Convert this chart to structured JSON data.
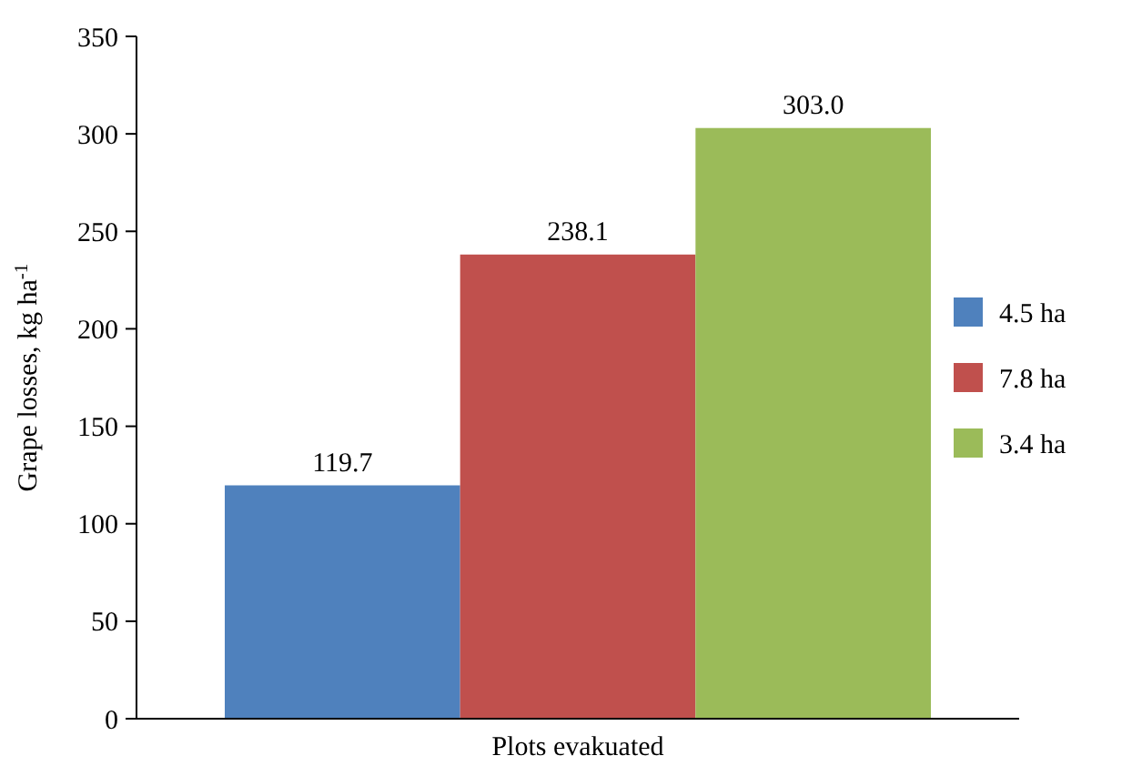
{
  "chart_data": {
    "type": "bar",
    "xlabel": "Plots evakuated",
    "ylabel": "Grape losses, kg ha$^{-1}$",
    "categories": [
      null
    ],
    "series": [
      {
        "name": "4.5 ha",
        "color": "#4f81bd",
        "values": [
          119.7
        ],
        "value_labels": [
          "119.7"
        ]
      },
      {
        "name": "7.8 ha",
        "color": "#c0504d",
        "values": [
          238.1
        ],
        "value_labels": [
          "238.1"
        ]
      },
      {
        "name": "3.4 ha",
        "color": "#9bbb59",
        "values": [
          303.0
        ],
        "value_labels": [
          "303.0"
        ]
      }
    ],
    "ylim": [
      0,
      350
    ],
    "yticks": [
      0,
      50,
      100,
      150,
      200,
      250,
      300,
      350
    ],
    "legend": "right",
    "grid": false
  }
}
